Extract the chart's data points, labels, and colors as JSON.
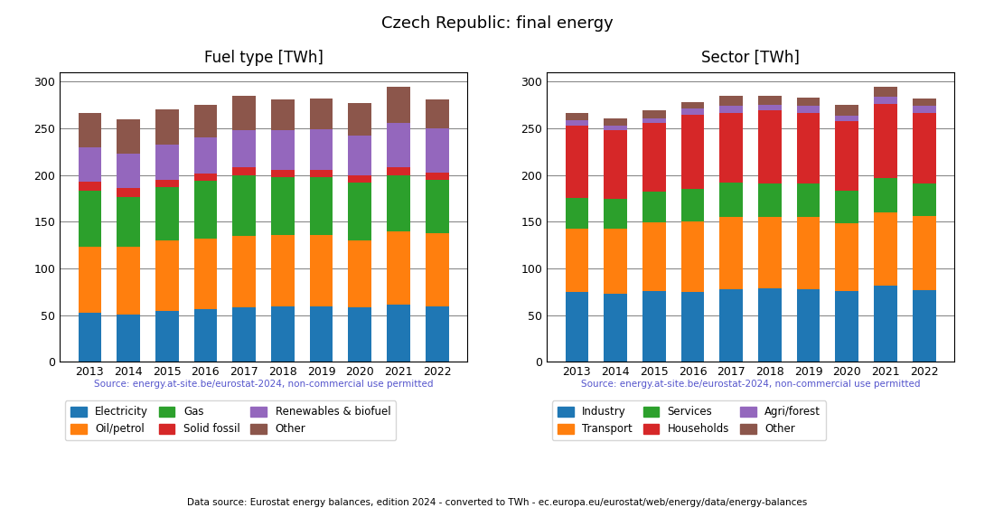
{
  "years": [
    2013,
    2014,
    2015,
    2016,
    2017,
    2018,
    2019,
    2020,
    2021,
    2022
  ],
  "title": "Czech Republic: final energy",
  "fuel_title": "Fuel type [TWh]",
  "sector_title": "Sector [TWh]",
  "source_text": "Source: energy.at-site.be/eurostat-2024, non-commercial use permitted",
  "bottom_text": "Data source: Eurostat energy balances, edition 2024 - converted to TWh - ec.europa.eu/eurostat/web/energy/data/energy-balances",
  "fuel_data": {
    "Electricity": [
      53,
      51,
      55,
      57,
      58,
      59,
      59,
      58,
      61,
      59
    ],
    "Oil/petrol": [
      70,
      72,
      75,
      75,
      77,
      77,
      77,
      72,
      79,
      79
    ],
    "Gas": [
      60,
      54,
      57,
      62,
      65,
      62,
      62,
      62,
      60,
      57
    ],
    "Solid fossil": [
      10,
      9,
      8,
      8,
      8,
      8,
      8,
      8,
      8,
      8
    ],
    "Renewables & biofuel": [
      37,
      37,
      38,
      38,
      40,
      42,
      43,
      42,
      48,
      47
    ],
    "Other": [
      37,
      37,
      37,
      35,
      37,
      33,
      33,
      35,
      39,
      31
    ]
  },
  "fuel_colors": {
    "Electricity": "#1f77b4",
    "Oil/petrol": "#ff7f0e",
    "Gas": "#2ca02c",
    "Solid fossil": "#d62728",
    "Renewables & biofuel": "#9467bd",
    "Other": "#8c564b"
  },
  "sector_data": {
    "Industry": [
      75,
      73,
      76,
      75,
      78,
      79,
      78,
      76,
      82,
      77
    ],
    "Transport": [
      68,
      70,
      73,
      75,
      77,
      76,
      77,
      72,
      78,
      79
    ],
    "Services": [
      33,
      32,
      33,
      35,
      37,
      36,
      36,
      35,
      37,
      35
    ],
    "Households": [
      77,
      73,
      74,
      80,
      75,
      78,
      76,
      75,
      79,
      76
    ],
    "Agri/forest": [
      6,
      5,
      5,
      6,
      7,
      6,
      7,
      6,
      8,
      7
    ],
    "Other": [
      8,
      8,
      8,
      7,
      11,
      10,
      9,
      11,
      11,
      8
    ]
  },
  "sector_colors": {
    "Industry": "#1f77b4",
    "Transport": "#ff7f0e",
    "Services": "#2ca02c",
    "Households": "#d62728",
    "Agri/forest": "#9467bd",
    "Other": "#8c564b"
  },
  "ylim": [
    0,
    310
  ],
  "yticks": [
    0,
    50,
    100,
    150,
    200,
    250,
    300
  ],
  "source_color": "#5555cc",
  "bar_width": 0.6
}
